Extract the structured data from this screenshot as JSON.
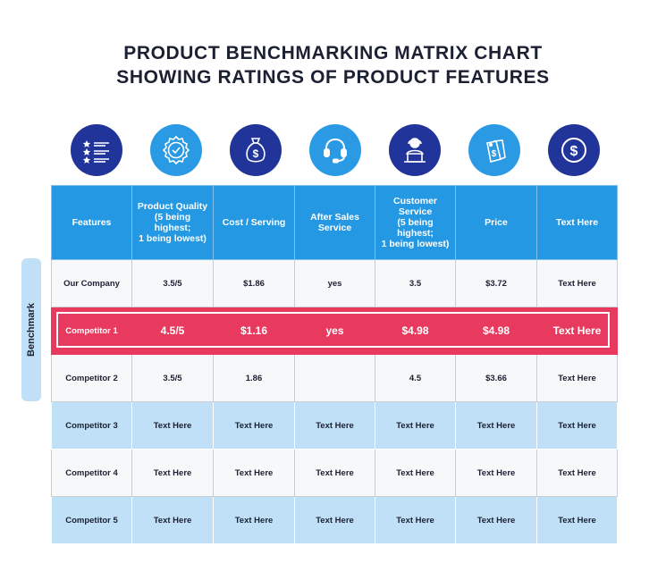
{
  "title": {
    "line1": "PRODUCT BENCHMARKING MATRIX CHART",
    "line2": "SHOWING RATINGS OF PRODUCT FEATURES"
  },
  "icons": [
    {
      "name": "rating-list-icon",
      "style": "dark"
    },
    {
      "name": "quality-badge-icon",
      "style": "light"
    },
    {
      "name": "money-bag-icon",
      "style": "dark"
    },
    {
      "name": "headset-icon",
      "style": "light"
    },
    {
      "name": "customer-service-agent-icon",
      "style": "dark"
    },
    {
      "name": "price-tag-icon",
      "style": "light"
    },
    {
      "name": "dollar-coin-icon",
      "style": "dark"
    }
  ],
  "colors": {
    "header_blue": "#2498e3",
    "icon_dark": "#20349a",
    "icon_light": "#2b9ae4",
    "highlight_red": "#e8395f",
    "row_blue": "#bfe0f7"
  },
  "side_label": "Benchmark",
  "table": {
    "headers": [
      "Features",
      "Product Quality\n(5 being highest;\n1 being lowest)",
      "Cost / Serving",
      "After Sales\nService",
      "Customer\nService\n(5 being highest;\n1 being lowest)",
      "Price",
      "Text Here"
    ],
    "rows": [
      {
        "style": "white",
        "cells": [
          "Our Company",
          "3.5/5",
          "$1.86",
          "yes",
          "3.5",
          "$3.72",
          "Text Here"
        ]
      },
      {
        "style": "hl",
        "cells": [
          "Competitor 1",
          "4.5/5",
          "$1.16",
          "yes",
          "$4.98",
          "$4.98",
          "Text Here"
        ]
      },
      {
        "style": "white",
        "cells": [
          "Competitor 2",
          "3.5/5",
          "1.86",
          "",
          "4.5",
          "$3.66",
          "Text Here"
        ]
      },
      {
        "style": "blue",
        "cells": [
          "Competitor 3",
          "Text Here",
          "Text Here",
          "Text Here",
          "Text Here",
          "Text Here",
          "Text Here"
        ]
      },
      {
        "style": "white",
        "cells": [
          "Competitor 4",
          "Text Here",
          "Text Here",
          "Text Here",
          "Text Here",
          "Text Here",
          "Text Here"
        ]
      },
      {
        "style": "blue",
        "cells": [
          "Competitor 5",
          "Text Here",
          "Text Here",
          "Text Here",
          "Text Here",
          "Text Here",
          "Text Here"
        ]
      }
    ]
  }
}
